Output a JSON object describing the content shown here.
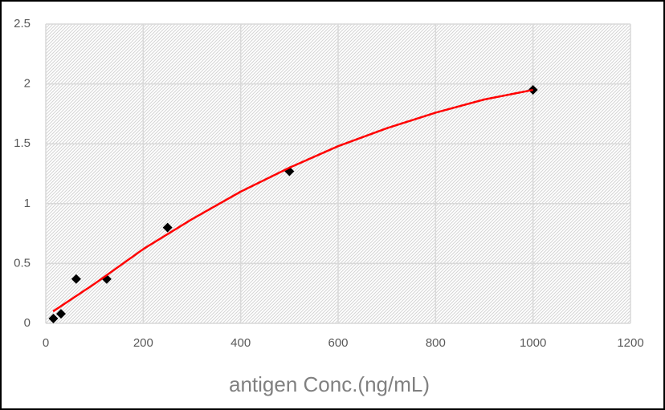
{
  "chart_data": {
    "type": "scatter",
    "x_label": "antigen Conc.(ng/mL)",
    "series": [
      {
        "mode": "markers",
        "color": "#000000",
        "x": [
          15.6,
          31.25,
          62.5,
          125,
          250,
          500,
          1000
        ],
        "values": [
          0.04,
          0.08,
          0.37,
          0.37,
          0.8,
          1.27,
          1.95
        ]
      },
      {
        "mode": "line",
        "color": "#ff0000",
        "x": [
          15,
          100,
          200,
          300,
          400,
          500,
          600,
          700,
          800,
          900,
          1000
        ],
        "values": [
          0.1,
          0.33,
          0.62,
          0.87,
          1.1,
          1.3,
          1.48,
          1.63,
          1.76,
          1.87,
          1.95
        ]
      }
    ],
    "xlim": [
      0,
      1200
    ],
    "xticks": [
      0,
      200,
      400,
      600,
      800,
      1000,
      1200
    ],
    "ylim": [
      0,
      2.5
    ],
    "yticks": [
      0,
      0.5,
      1,
      1.5,
      2,
      2.5
    ],
    "grid": true
  }
}
